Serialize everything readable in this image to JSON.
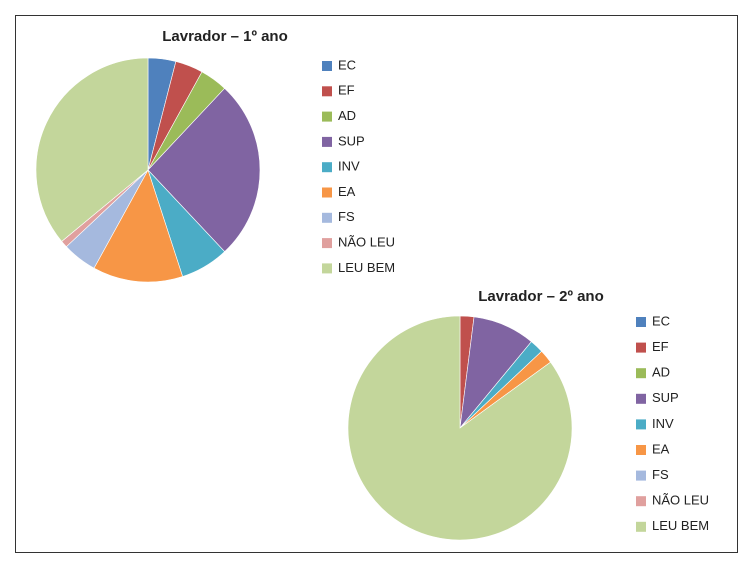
{
  "chart_data": [
    {
      "type": "pie",
      "title": "Lavrador – 1º ano",
      "categories": [
        "EC",
        "EF",
        "AD",
        "SUP",
        "INV",
        "EA",
        "FS",
        "NÃO LEU",
        "LEU BEM"
      ],
      "values": [
        4,
        4,
        4,
        26,
        7,
        13,
        5,
        1,
        36
      ],
      "colors": [
        "#4f81bd",
        "#c0504d",
        "#9bbb59",
        "#8064a2",
        "#4bacc6",
        "#f79646",
        "#a5b9de",
        "#e0a09e",
        "#c3d69b"
      ]
    },
    {
      "type": "pie",
      "title": "Lavrador – 2º ano",
      "categories": [
        "EC",
        "EF",
        "AD",
        "SUP",
        "INV",
        "EA",
        "FS",
        "NÃO LEU",
        "LEU BEM"
      ],
      "values": [
        0,
        2,
        0,
        9,
        2,
        2,
        0,
        0,
        85
      ],
      "colors": [
        "#4f81bd",
        "#c0504d",
        "#9bbb59",
        "#8064a2",
        "#4bacc6",
        "#f79646",
        "#a5b9de",
        "#e0a09e",
        "#c3d69b"
      ]
    }
  ]
}
